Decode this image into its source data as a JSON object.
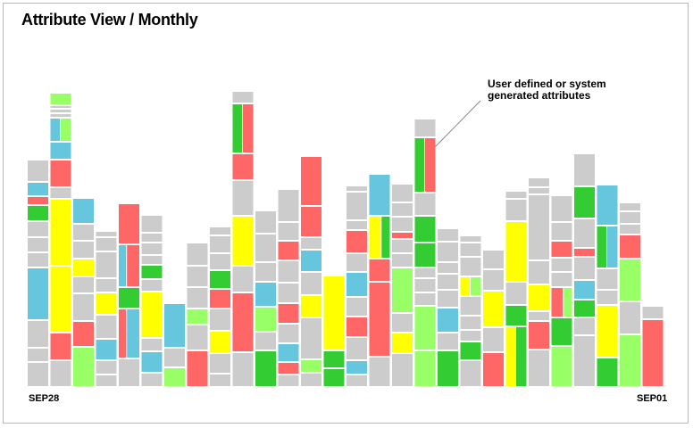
{
  "chart_data": {
    "type": "bar",
    "title": "Attribute View / Monthly",
    "subtitle": "",
    "xlabel": "",
    "ylabel": "",
    "x_start_label": "SEP28",
    "x_end_label": "SEP01",
    "annotation": "User defined or system\ngenerated attributes",
    "grid": false,
    "legend": "none",
    "colors": {
      "grey": "#cccccc",
      "blue": "#66c6de",
      "green": "#33cc33",
      "red": "#ff6666",
      "yellow": "#ffff00",
      "lightgreen": "#99ff66"
    },
    "columns": [
      {
        "segments": [
          [
            28,
            "grey"
          ],
          [
            16,
            "grey"
          ],
          [
            31,
            "grey"
          ],
          [
            59,
            "blue"
          ],
          [
            17,
            "grey"
          ],
          [
            17,
            "grey"
          ],
          [
            18,
            "grey"
          ],
          [
            18,
            "green"
          ],
          [
            10,
            "red"
          ],
          [
            16,
            "blue"
          ],
          [
            25,
            "grey"
          ]
        ]
      },
      {
        "segments": [
          [
            30,
            "grey"
          ],
          [
            31,
            "red"
          ],
          [
            75,
            "yellow"
          ],
          [
            75,
            "yellow"
          ],
          [
            13,
            "grey"
          ],
          [
            31,
            "red"
          ],
          [
            20,
            "blue"
          ],
          [
            [
              27,
              "blue",
              0.5
            ],
            [
              27,
              "lightgreen",
              0.5
            ]
          ],
          [
            5,
            "grey"
          ],
          [
            5,
            "grey"
          ],
          [
            4,
            "grey"
          ],
          [
            14,
            "lightgreen"
          ]
        ]
      },
      {
        "segments": [
          [
            45,
            "lightgreen"
          ],
          [
            29,
            "red"
          ],
          [
            31,
            "grey"
          ],
          [
            19,
            "grey"
          ],
          [
            20,
            "yellow"
          ],
          [
            20,
            "grey"
          ],
          [
            19,
            "grey"
          ],
          [
            29,
            "blue"
          ]
        ]
      },
      {
        "segments": [
          [
            14,
            "grey"
          ],
          [
            16,
            "grey"
          ],
          [
            24,
            "blue"
          ],
          [
            27,
            "grey"
          ],
          [
            25,
            "yellow"
          ],
          [
            16,
            "grey"
          ],
          [
            30,
            "grey"
          ],
          [
            16,
            "grey"
          ],
          [
            7,
            "grey"
          ]
        ]
      },
      {
        "segments": [
          [
            32,
            "grey"
          ],
          [
            [
              56,
              "red",
              0.4
            ],
            [
              56,
              "blue",
              0.6
            ]
          ],
          [
            24,
            "green"
          ],
          [
            [
              48,
              "blue",
              0.4
            ],
            [
              48,
              "red",
              0.6
            ]
          ],
          [
            46,
            "red"
          ]
        ]
      },
      {
        "segments": [
          [
            16,
            "grey"
          ],
          [
            24,
            "blue"
          ],
          [
            15,
            "grey"
          ],
          [
            52,
            "yellow"
          ],
          [
            14,
            "grey"
          ],
          [
            16,
            "green"
          ],
          [
            11,
            "grey"
          ],
          [
            14,
            "grey"
          ],
          [
            11,
            "grey"
          ],
          [
            20,
            "grey"
          ]
        ]
      },
      {
        "segments": [
          [
            22,
            "lightgreen"
          ],
          [
            22,
            "grey"
          ],
          [
            50,
            "blue"
          ]
        ]
      },
      {
        "segments": [
          [
            41,
            "red"
          ],
          [
            29,
            "grey"
          ],
          [
            18,
            "lightgreen"
          ],
          [
            24,
            "grey"
          ],
          [
            24,
            "grey"
          ],
          [
            26,
            "grey"
          ]
        ]
      },
      {
        "segments": [
          [
            15,
            "grey"
          ],
          [
            23,
            "grey"
          ],
          [
            25,
            "yellow"
          ],
          [
            25,
            "grey"
          ],
          [
            22,
            "red"
          ],
          [
            21,
            "green"
          ],
          [
            19,
            "grey"
          ],
          [
            20,
            "grey"
          ],
          [
            10,
            "grey"
          ]
        ]
      },
      {
        "segments": [
          [
            39,
            "grey"
          ],
          [
            67,
            "red"
          ],
          [
            30,
            "grey"
          ],
          [
            56,
            "yellow"
          ],
          [
            40,
            "grey"
          ],
          [
            30,
            "red"
          ],
          [
            [
              56,
              "green",
              0.5
            ],
            [
              56,
              "red",
              0.5
            ]
          ],
          [
            14,
            "grey"
          ]
        ]
      },
      {
        "segments": [
          [
            41,
            "green"
          ],
          [
            21,
            "grey"
          ],
          [
            28,
            "lightgreen"
          ],
          [
            28,
            "blue"
          ],
          [
            22,
            "grey"
          ],
          [
            32,
            "grey"
          ],
          [
            26,
            "grey"
          ]
        ]
      },
      {
        "segments": [
          [
            14,
            "grey"
          ],
          [
            14,
            "red"
          ],
          [
            21,
            "blue"
          ],
          [
            22,
            "grey"
          ],
          [
            23,
            "red"
          ],
          [
            23,
            "grey"
          ],
          [
            25,
            "grey"
          ],
          [
            22,
            "red"
          ],
          [
            21,
            "grey"
          ],
          [
            37,
            "grey"
          ]
        ]
      },
      {
        "segments": [
          [
            16,
            "grey"
          ],
          [
            15,
            "lightgreen"
          ],
          [
            47,
            "grey"
          ],
          [
            25,
            "yellow"
          ],
          [
            26,
            "grey"
          ],
          [
            25,
            "blue"
          ],
          [
            14,
            "grey"
          ],
          [
            35,
            "red"
          ],
          [
            56,
            "red"
          ]
        ]
      },
      {
        "segments": [
          [
            21,
            "green"
          ],
          [
            20,
            "green"
          ],
          [
            84,
            "yellow"
          ]
        ]
      },
      {
        "segments": [
          [
            14,
            "grey"
          ],
          [
            16,
            "blue"
          ],
          [
            26,
            "grey"
          ],
          [
            23,
            "red"
          ],
          [
            22,
            "grey"
          ],
          [
            28,
            "blue"
          ],
          [
            21,
            "grey"
          ],
          [
            26,
            "red"
          ],
          [
            11,
            "grey"
          ],
          [
            32,
            "grey"
          ],
          [
            7,
            "grey"
          ]
        ]
      },
      {
        "segments": [
          [
            34,
            "grey"
          ],
          [
            84,
            "red"
          ],
          [
            26,
            "red"
          ],
          [
            [
              48,
              "yellow",
              0.6
            ],
            [
              48,
              "green",
              0.4
            ]
          ],
          [
            47,
            "blue"
          ]
        ]
      },
      {
        "segments": [
          [
            38,
            "grey"
          ],
          [
            23,
            "yellow"
          ],
          [
            22,
            "grey"
          ],
          [
            51,
            "lightgreen"
          ],
          [
            16,
            "grey"
          ],
          [
            16,
            "grey"
          ],
          [
            8,
            "red"
          ],
          [
            17,
            "grey"
          ],
          [
            16,
            "grey"
          ],
          [
            21,
            "grey"
          ]
        ]
      },
      {
        "segments": [
          [
            41,
            "lightgreen"
          ],
          [
            50,
            "lightgreen"
          ],
          [
            15,
            "grey"
          ],
          [
            16,
            "grey"
          ],
          [
            12,
            "grey"
          ],
          [
            28,
            "green"
          ],
          [
            30,
            "green"
          ],
          [
            26,
            "grey"
          ],
          [
            [
              62,
              "green",
              0.5
            ],
            [
              62,
              "red",
              0.5
            ]
          ],
          [
            21,
            "grey"
          ]
        ]
      },
      {
        "segments": [
          [
            41,
            "green"
          ],
          [
            20,
            "grey"
          ],
          [
            28,
            "blue"
          ],
          [
            20,
            "grey"
          ],
          [
            18,
            "grey"
          ],
          [
            13,
            "grey"
          ],
          [
            23,
            "grey"
          ],
          [
            15,
            "grey"
          ]
        ]
      },
      {
        "segments": [
          [
            30,
            "grey"
          ],
          [
            21,
            "green"
          ],
          [
            13,
            "grey"
          ],
          [
            16,
            "grey"
          ],
          [
            22,
            "grey"
          ],
          [
            [
              22,
              "yellow",
              0.5
            ],
            [
              22,
              "lightgreen",
              0.5
            ]
          ],
          [
            22,
            "grey"
          ],
          [
            16,
            "grey"
          ],
          [
            8,
            "grey"
          ]
        ]
      },
      {
        "segments": [
          [
            39,
            "red"
          ],
          [
            28,
            "grey"
          ],
          [
            41,
            "yellow"
          ],
          [
            24,
            "grey"
          ],
          [
            22,
            "grey"
          ]
        ]
      },
      {
        "segments": [
          [
            [
              68,
              "yellow",
              0.5
            ],
            [
              68,
              "green",
              0.5
            ]
          ],
          [
            24,
            "green"
          ],
          [
            26,
            "grey"
          ],
          [
            68,
            "yellow"
          ],
          [
            25,
            "grey"
          ],
          [
            9,
            "grey"
          ]
        ]
      },
      {
        "segments": [
          [
            42,
            "grey"
          ],
          [
            32,
            "red"
          ],
          [
            11,
            "grey"
          ],
          [
            30,
            "yellow"
          ],
          [
            27,
            "grey"
          ],
          [
            74,
            "grey"
          ],
          [
            8,
            "grey"
          ],
          [
            11,
            "grey"
          ]
        ]
      },
      {
        "segments": [
          [
            46,
            "lightgreen"
          ],
          [
            32,
            "green"
          ],
          [
            [
              34,
              "red",
              0.6
            ],
            [
              34,
              "lightgreen",
              0.4
            ]
          ],
          [
            17,
            "grey"
          ],
          [
            16,
            "grey"
          ],
          [
            19,
            "red"
          ],
          [
            21,
            "grey"
          ],
          [
            30,
            "grey"
          ]
        ]
      },
      {
        "segments": [
          [
            58,
            "grey"
          ],
          [
            20,
            "grey"
          ],
          [
            20,
            "green"
          ],
          [
            22,
            "blue"
          ],
          [
            26,
            "grey"
          ],
          [
            10,
            "red"
          ],
          [
            33,
            "grey"
          ],
          [
            36,
            "green"
          ],
          [
            37,
            "grey"
          ]
        ]
      },
      {
        "segments": [
          [
            33,
            "green"
          ],
          [
            59,
            "yellow"
          ],
          [
            17,
            "grey"
          ],
          [
            24,
            "grey"
          ],
          [
            [
              48,
              "green",
              0.5
            ],
            [
              48,
              "blue",
              0.5
            ]
          ],
          [
            46,
            "blue"
          ]
        ]
      },
      {
        "segments": [
          [
            59,
            "lightgreen"
          ],
          [
            37,
            "grey"
          ],
          [
            48,
            "lightgreen"
          ],
          [
            27,
            "red"
          ],
          [
            12,
            "grey"
          ],
          [
            14,
            "grey"
          ],
          [
            10,
            "grey"
          ]
        ]
      },
      {
        "segments": [
          [
            76,
            "red"
          ],
          [
            15,
            "grey"
          ]
        ]
      }
    ]
  }
}
